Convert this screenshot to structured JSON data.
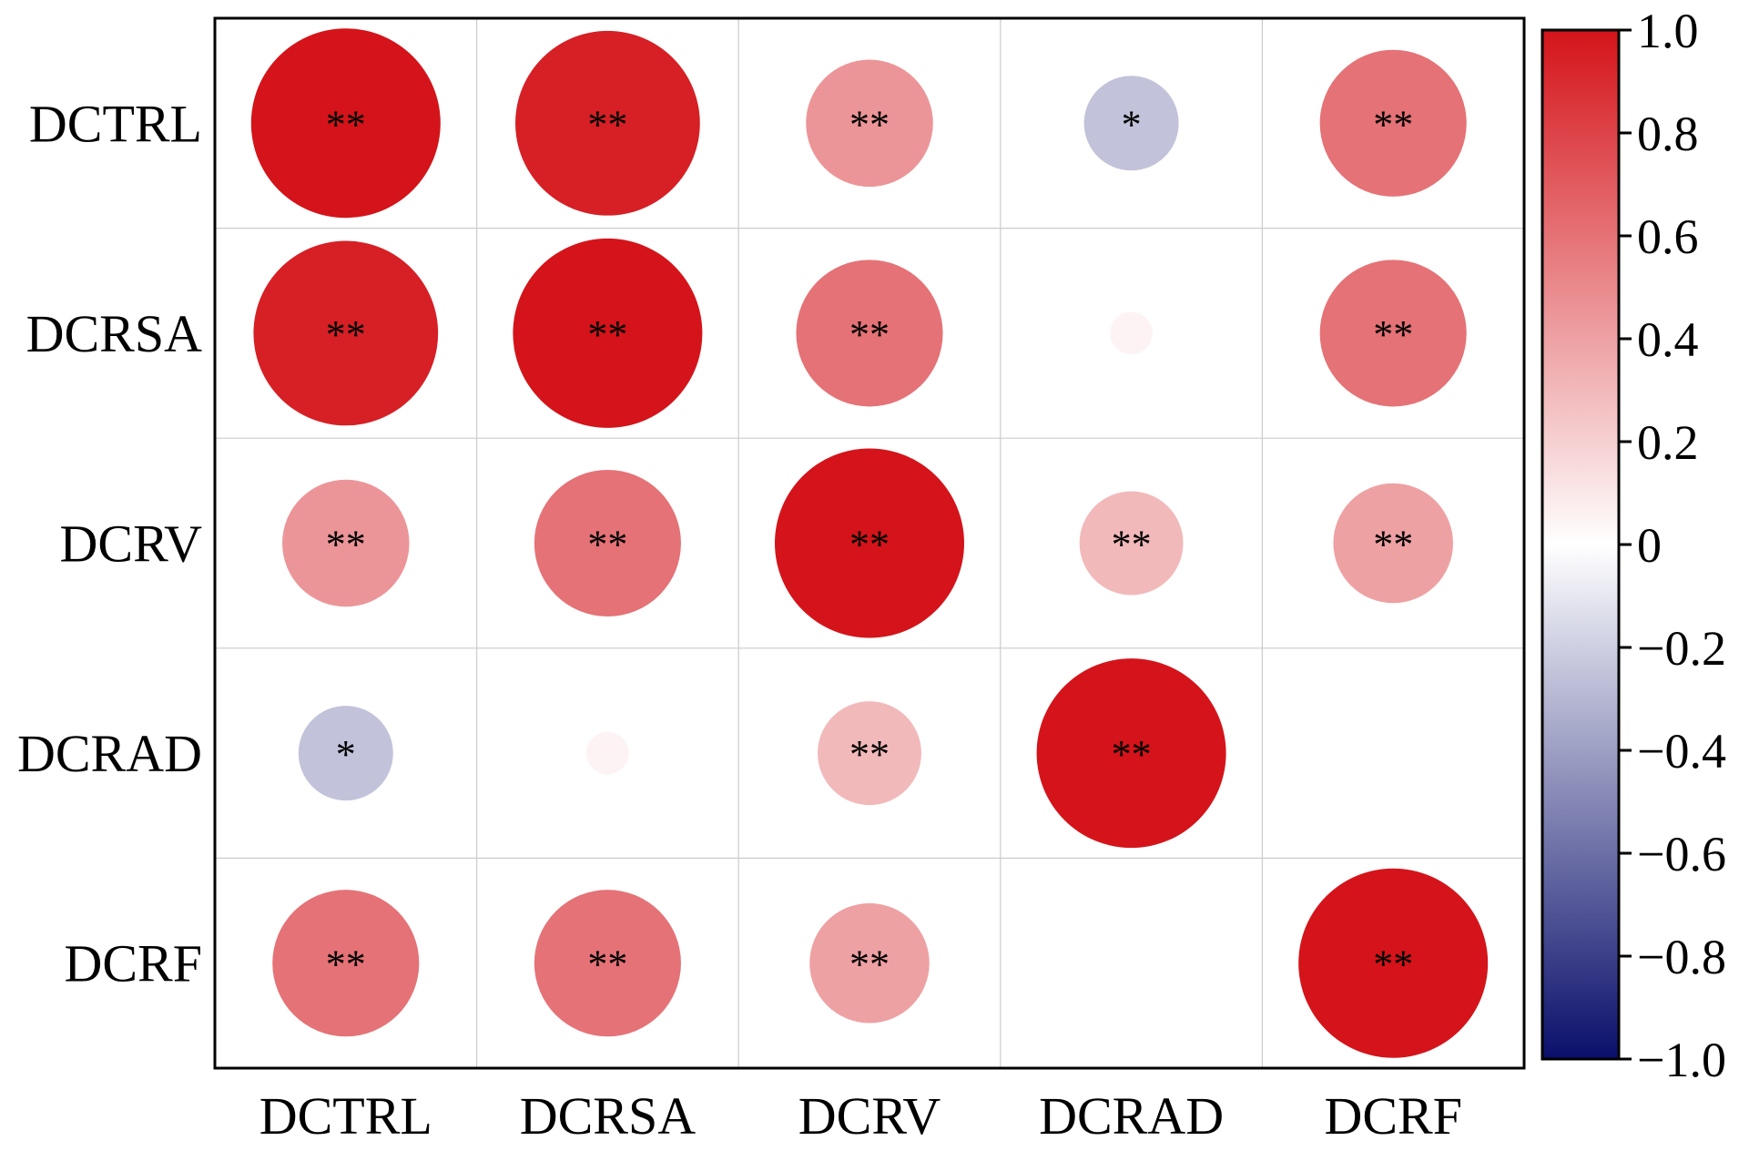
{
  "chart_data": {
    "type": "heatmap",
    "title": "",
    "xlabel": "",
    "ylabel": "",
    "variables": [
      "DCTRL",
      "DCRSA",
      "DCRV",
      "DCRAD",
      "DCRF"
    ],
    "matrix": [
      [
        1.0,
        0.95,
        0.45,
        -0.25,
        0.6
      ],
      [
        0.95,
        1.0,
        0.6,
        0.05,
        0.6
      ],
      [
        0.45,
        0.6,
        1.0,
        0.3,
        0.4
      ],
      [
        -0.25,
        0.05,
        0.3,
        1.0,
        0.0
      ],
      [
        0.6,
        0.6,
        0.4,
        0.0,
        1.0
      ]
    ],
    "significance": [
      [
        "**",
        "**",
        "**",
        "*",
        "**"
      ],
      [
        "**",
        "**",
        "**",
        "",
        "**"
      ],
      [
        "**",
        "**",
        "**",
        "**",
        "**"
      ],
      [
        "*",
        "",
        "**",
        "**",
        ""
      ],
      [
        "**",
        "**",
        "**",
        "",
        "**"
      ]
    ],
    "colorbar": {
      "range": [
        -1.0,
        1.0
      ],
      "ticks": [
        "1.0",
        "0.8",
        "0.6",
        "0.4",
        "0.2",
        "0",
        "−0.2",
        "−0.4",
        "−0.6",
        "−0.8",
        "−1.0"
      ],
      "colors": [
        "#0a0f6b",
        "#ffffff",
        "#d4141a"
      ]
    },
    "grid": true
  }
}
